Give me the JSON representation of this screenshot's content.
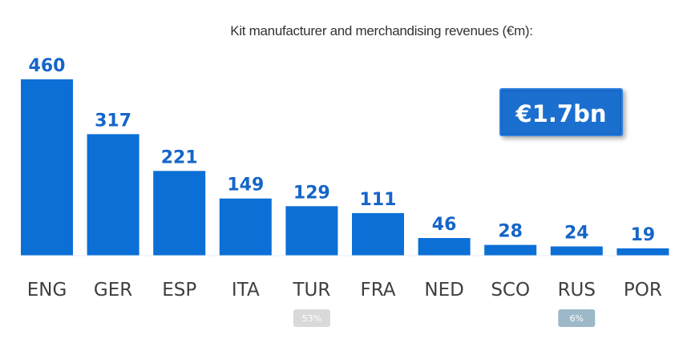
{
  "colors": {
    "bar": "#0b6fd6",
    "value_label": "#1565c8",
    "badge_light": "#d9d9d9",
    "badge_blue": "#9db8c8"
  },
  "total_badge": "€1.7bn",
  "chart_data": {
    "type": "bar",
    "title": "Kit manufacturer and merchandising revenues (€m):",
    "xlabel": "",
    "ylabel": "",
    "ylim": [
      0,
      460
    ],
    "grid": false,
    "categories": [
      "ENG",
      "GER",
      "ESP",
      "ITA",
      "TUR",
      "FRA",
      "NED",
      "SCO",
      "RUS",
      "POR"
    ],
    "values": [
      460,
      317,
      221,
      149,
      129,
      111,
      46,
      28,
      24,
      19
    ],
    "annotations": [
      {
        "category": "TUR",
        "text": "53%",
        "style": "light"
      },
      {
        "category": "RUS",
        "text": "6%",
        "style": "blue"
      }
    ]
  }
}
